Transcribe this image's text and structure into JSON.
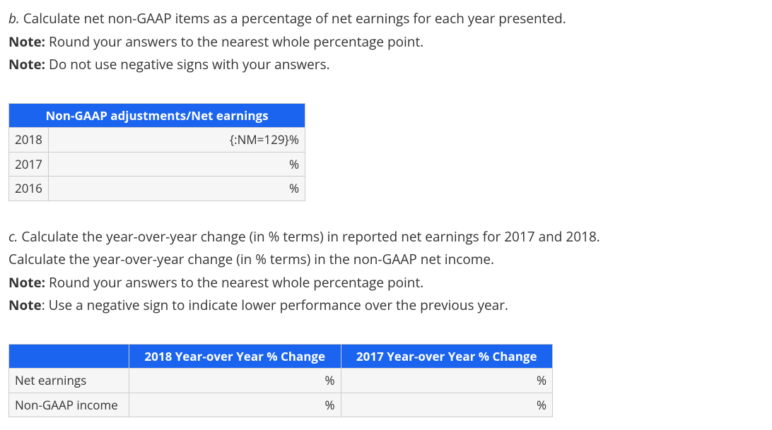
{
  "sectionB": {
    "label": "b.",
    "text": "Calculate net non-GAAP items as a percentage of net earnings for each year presented.",
    "note1Label": "Note:",
    "note1": " Round your answers to the nearest whole percentage point.",
    "note2Label": "Note:",
    "note2": " Do not use negative signs with your answers.",
    "table": {
      "header": "Non-GAAP adjustments/Net earnings",
      "rows": [
        {
          "year": "2018",
          "value": "{:NM=129}%"
        },
        {
          "year": "2017",
          "value": "%"
        },
        {
          "year": "2016",
          "value": "%"
        }
      ]
    }
  },
  "sectionC": {
    "label": "c.",
    "text1": "Calculate the year-over-year change (in % terms) in reported net earnings for 2017 and 2018.",
    "text2": "Calculate the year-over-year change (in % terms) in the non-GAAP net income.",
    "note1Label": "Note:",
    "note1": " Round your answers to the nearest whole percentage point.",
    "note2Label": "Note",
    "note2": ": Use a negative sign to indicate lower performance over the previous year.",
    "table": {
      "headers": [
        "2018 Year-over Year % Change",
        "2017 Year-over Year % Change"
      ],
      "rows": [
        {
          "label": "Net earnings",
          "v2018": "%",
          "v2017": "%"
        },
        {
          "label": "Non-GAAP income",
          "v2018": "%",
          "v2017": "%"
        }
      ]
    }
  }
}
